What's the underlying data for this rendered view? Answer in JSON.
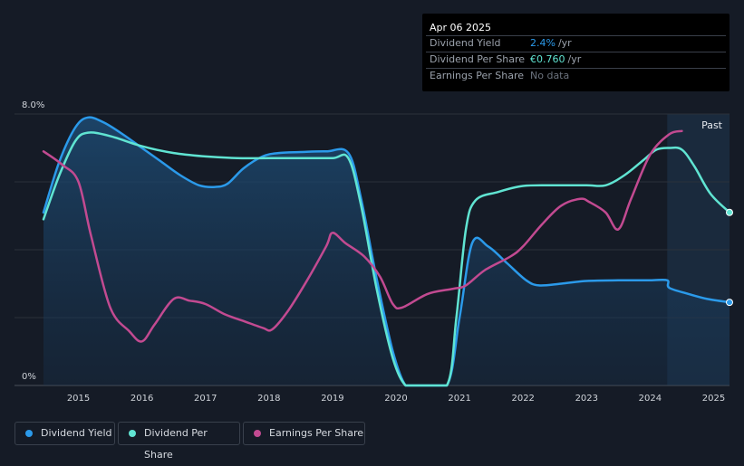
{
  "tooltip": {
    "date": "Apr 06 2025",
    "rows": [
      {
        "label": "Dividend Yield",
        "value": "2.4%",
        "unit": "/yr",
        "color": "#2b9aea"
      },
      {
        "label": "Dividend Per Share",
        "value": "€0.760",
        "unit": "/yr",
        "color": "#60e4d2"
      },
      {
        "label": "Earnings Per Share",
        "value": "No data",
        "unit": "",
        "color": "#6b727d"
      }
    ]
  },
  "legend": [
    {
      "label": "Dividend Yield",
      "color": "#2b9aea"
    },
    {
      "label": "Dividend Per Share",
      "color": "#60e4d2"
    },
    {
      "label": "Earnings Per Share",
      "color": "#c24a91"
    }
  ],
  "chart_data": {
    "type": "line",
    "ylim": [
      0,
      8
    ],
    "y_tick_labels": [
      "8.0%",
      "0%"
    ],
    "y_tick_values": [
      8,
      0
    ],
    "xlim": [
      2014.45,
      2025.25
    ],
    "x_ticks": [
      "2015",
      "2016",
      "2017",
      "2018",
      "2019",
      "2020",
      "2021",
      "2022",
      "2023",
      "2024",
      "2025"
    ],
    "x_tick_values": [
      2015,
      2016,
      2017,
      2018,
      2019,
      2020,
      2021,
      2022,
      2023,
      2024,
      2025
    ],
    "past_label": "Past",
    "past_start": 2024.27,
    "series": [
      {
        "name": "Dividend Yield",
        "color": "#2b9aea",
        "x": [
          2014.45,
          2014.7,
          2014.95,
          2015.15,
          2015.4,
          2015.7,
          2016.0,
          2016.3,
          2016.6,
          2016.9,
          2017.15,
          2017.35,
          2017.6,
          2017.9,
          2018.15,
          2018.5,
          2018.9,
          2019.25,
          2019.45,
          2019.7,
          2019.95,
          2020.15,
          2020.35,
          2020.8,
          2021.0,
          2021.2,
          2021.45,
          2021.75,
          2022.05,
          2022.25,
          2022.6,
          2023.0,
          2023.5,
          2024.0,
          2024.27,
          2024.3,
          2024.6,
          2024.9,
          2025.25
        ],
        "values": [
          5.1,
          6.6,
          7.6,
          7.9,
          7.75,
          7.4,
          7.0,
          6.6,
          6.2,
          5.9,
          5.85,
          5.95,
          6.4,
          6.75,
          6.85,
          6.88,
          6.9,
          6.85,
          5.5,
          3.1,
          1.0,
          0.0,
          0.0,
          0.0,
          2.0,
          4.2,
          4.1,
          3.6,
          3.1,
          2.95,
          3.0,
          3.08,
          3.1,
          3.1,
          3.1,
          2.88,
          2.7,
          2.55,
          2.45
        ]
      },
      {
        "name": "Dividend Per Share",
        "color": "#60e4d2",
        "x": [
          2014.45,
          2014.7,
          2014.95,
          2015.15,
          2015.5,
          2016.0,
          2016.5,
          2017.0,
          2017.5,
          2018.0,
          2018.5,
          2019.0,
          2019.25,
          2019.45,
          2019.7,
          2019.95,
          2020.15,
          2020.35,
          2020.8,
          2020.95,
          2021.1,
          2021.25,
          2021.6,
          2022.0,
          2022.5,
          2023.0,
          2023.3,
          2023.6,
          2023.9,
          2024.1,
          2024.3,
          2024.5,
          2024.7,
          2024.95,
          2025.25
        ],
        "values": [
          4.9,
          6.2,
          7.2,
          7.45,
          7.35,
          7.05,
          6.85,
          6.75,
          6.7,
          6.7,
          6.7,
          6.7,
          6.7,
          5.3,
          2.8,
          0.8,
          0.0,
          0.0,
          0.0,
          2.0,
          4.6,
          5.45,
          5.7,
          5.88,
          5.9,
          5.9,
          5.9,
          6.2,
          6.65,
          6.95,
          7.0,
          6.95,
          6.45,
          5.65,
          5.1
        ]
      },
      {
        "name": "Earnings Per Share",
        "color": "#c24a91",
        "x": [
          2014.45,
          2014.75,
          2015.0,
          2015.2,
          2015.5,
          2015.8,
          2016.0,
          2016.2,
          2016.5,
          2016.75,
          2017.0,
          2017.3,
          2017.6,
          2017.9,
          2018.05,
          2018.3,
          2018.6,
          2018.9,
          2019.0,
          2019.2,
          2019.5,
          2019.75,
          2019.95,
          2020.1,
          2020.5,
          2020.9,
          2021.1,
          2021.4,
          2021.8,
          2022.0,
          2022.3,
          2022.6,
          2022.9,
          2023.05,
          2023.3,
          2023.5,
          2023.7,
          2024.0,
          2024.3,
          2024.5
        ],
        "values": [
          6.9,
          6.5,
          6.0,
          4.4,
          2.3,
          1.6,
          1.3,
          1.8,
          2.55,
          2.5,
          2.4,
          2.1,
          1.9,
          1.7,
          1.65,
          2.2,
          3.1,
          4.1,
          4.5,
          4.2,
          3.8,
          3.2,
          2.4,
          2.3,
          2.7,
          2.85,
          2.95,
          3.4,
          3.8,
          4.1,
          4.75,
          5.3,
          5.5,
          5.4,
          5.1,
          4.6,
          5.5,
          6.8,
          7.4,
          7.5
        ]
      }
    ]
  }
}
